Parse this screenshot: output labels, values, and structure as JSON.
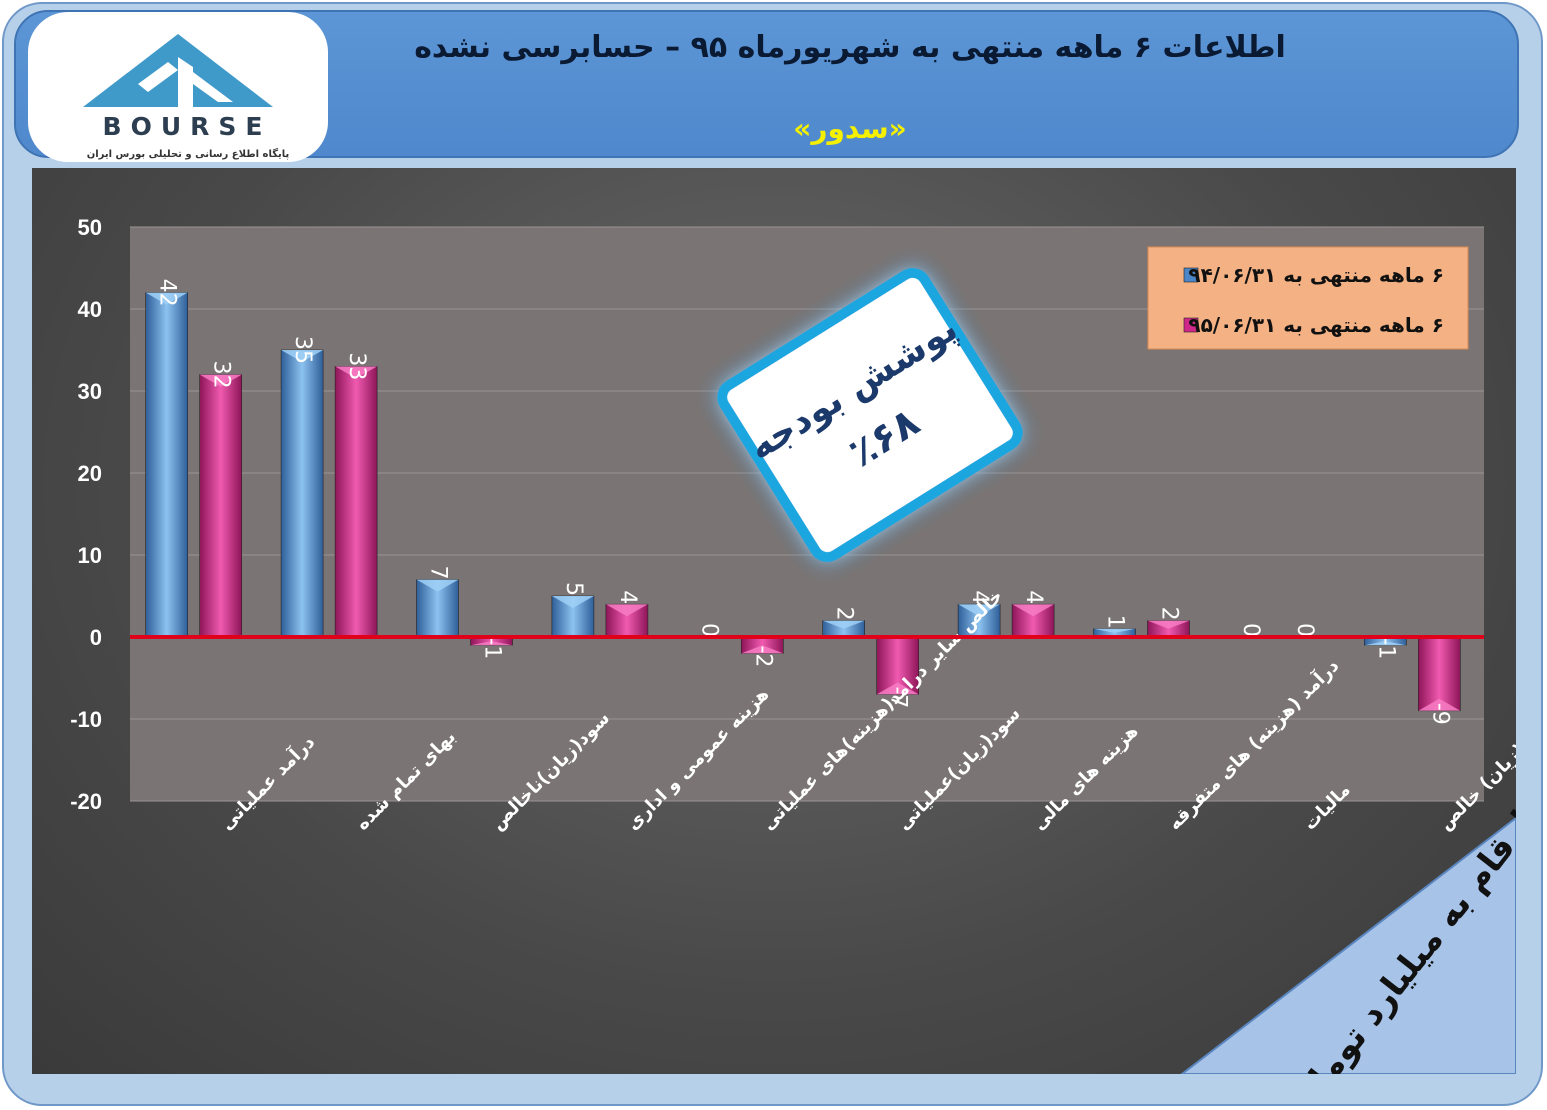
{
  "header": {
    "title": "اطلاعات ۶  ماهه منتهی به شهریورماه ۹۵ – حسابرسی نشده",
    "subtitle": "«سدور»"
  },
  "logo": {
    "text": "BOURSE",
    "tagline": "پایگاه اطلاع رسانی و تحلیلی بورس ایران"
  },
  "badge": {
    "line1": "پوشش بودجه",
    "line2": "٪۶۸"
  },
  "units_note": "ارقام به میلیارد تومان",
  "chart_data": {
    "type": "bar",
    "categories": [
      "درآمد عملیاتی",
      "بهای تمام شده",
      "سود(زیان)ناخالص",
      "هزینه عمومی و اداری",
      "خالص سایر درامد(هزینه)های عملیاتی",
      "سود(زیان)عملیاتی",
      "هزینه های مالی",
      "درآمد (هزینه) های متفرقه",
      "مالیات",
      "سود(زیان) خالص"
    ],
    "series": [
      {
        "name": "۶ ماهه منتهی به ۹۴/۰۶/۳۱",
        "values": [
          42,
          35,
          7,
          5,
          0,
          2,
          4,
          1,
          0,
          -1
        ]
      },
      {
        "name": "۶ ماهه منتهی به ۹۵/۰۶/۳۱",
        "values": [
          32,
          33,
          -1,
          4,
          -2,
          -7,
          4,
          2,
          0,
          -9
        ]
      }
    ],
    "y_ticks": [
      "50",
      "40",
      "30",
      "20",
      "10",
      "0",
      "-10",
      "-20"
    ],
    "ylim": [
      -20,
      50
    ],
    "legend_position": "top-right",
    "colors": {
      "series1": "#4a86c8",
      "series2": "#d0288a",
      "zero_line": "#e0001a",
      "legend_bg": "#f4b183"
    }
  }
}
